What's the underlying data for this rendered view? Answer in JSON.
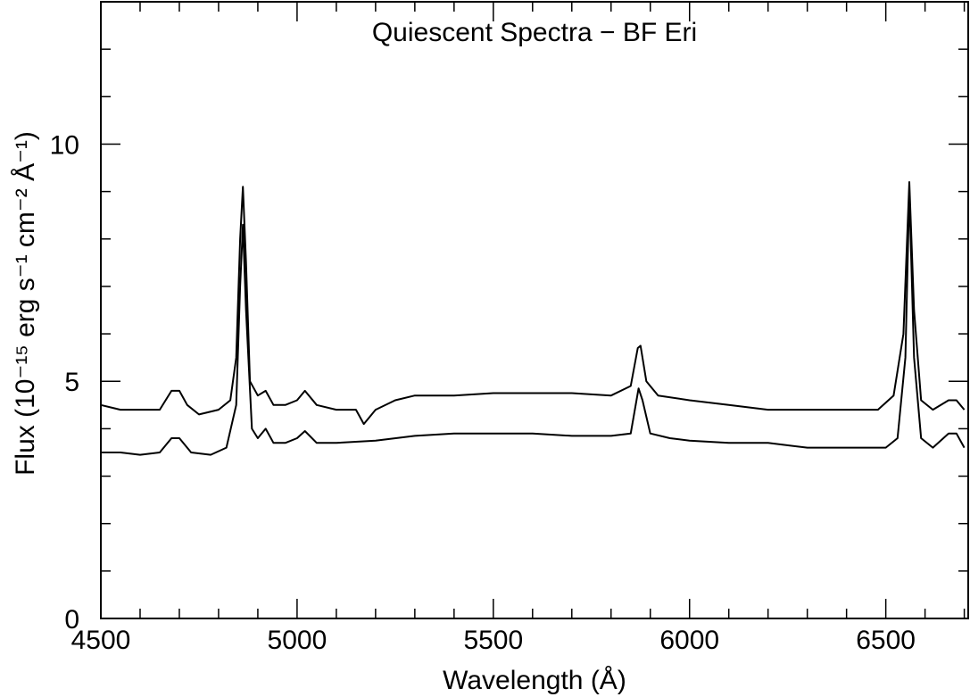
{
  "chart_data": {
    "type": "line",
    "title": "Quiescent Spectra − BF Eri",
    "x_label": "Wavelength (Å)",
    "y_label": "Flux (10⁻¹⁵ erg s⁻¹ cm⁻² Å⁻¹)",
    "xlim": [
      4500,
      6710
    ],
    "ylim": [
      0,
      13
    ],
    "xticks": [
      4500,
      5000,
      5500,
      6000,
      6500
    ],
    "yticks": [
      0,
      5,
      10
    ],
    "xminorticks": [
      4600,
      4700,
      4800,
      4900,
      5100,
      5200,
      5300,
      5400,
      5600,
      5700,
      5800,
      5900,
      6100,
      6200,
      6300,
      6400,
      6600,
      6700
    ],
    "yminorticks": [
      1,
      2,
      3,
      4,
      6,
      7,
      8,
      9,
      11,
      12
    ],
    "series": [
      {
        "color": "#000000",
        "x": [
          4500,
          4550,
          4600,
          4650,
          4680,
          4700,
          4720,
          4750,
          4800,
          4830,
          4845,
          4855,
          4862,
          4870,
          4880,
          4900,
          4920,
          4940,
          4970,
          5000,
          5020,
          5050,
          5100,
          5150,
          5170,
          5200,
          5250,
          5300,
          5400,
          5500,
          5600,
          5700,
          5800,
          5850,
          5868,
          5875,
          5890,
          5920,
          6000,
          6100,
          6200,
          6300,
          6400,
          6480,
          6520,
          6545,
          6560,
          6572,
          6590,
          6620,
          6660,
          6680,
          6700
        ],
        "values": [
          4.5,
          4.4,
          4.4,
          4.4,
          4.8,
          4.8,
          4.5,
          4.3,
          4.4,
          4.6,
          5.5,
          8.0,
          9.1,
          7.5,
          5.0,
          4.7,
          4.8,
          4.5,
          4.5,
          4.6,
          4.8,
          4.5,
          4.4,
          4.4,
          4.1,
          4.4,
          4.6,
          4.7,
          4.7,
          4.75,
          4.75,
          4.75,
          4.7,
          4.9,
          5.7,
          5.75,
          5.0,
          4.7,
          4.6,
          4.5,
          4.4,
          4.4,
          4.4,
          4.4,
          4.7,
          6.0,
          9.2,
          6.5,
          4.6,
          4.4,
          4.6,
          4.6,
          4.4
        ]
      },
      {
        "color": "#000000",
        "x": [
          4500,
          4550,
          4600,
          4650,
          4680,
          4700,
          4730,
          4780,
          4820,
          4845,
          4855,
          4862,
          4870,
          4885,
          4900,
          4920,
          4940,
          4970,
          5000,
          5020,
          5050,
          5100,
          5200,
          5300,
          5400,
          5500,
          5600,
          5700,
          5800,
          5850,
          5870,
          5880,
          5900,
          5950,
          6000,
          6100,
          6200,
          6300,
          6400,
          6500,
          6530,
          6550,
          6560,
          6572,
          6590,
          6620,
          6660,
          6680,
          6700
        ],
        "values": [
          3.5,
          3.5,
          3.45,
          3.5,
          3.8,
          3.8,
          3.5,
          3.45,
          3.6,
          4.5,
          7.0,
          8.3,
          6.5,
          4.0,
          3.8,
          4.0,
          3.7,
          3.7,
          3.8,
          3.95,
          3.7,
          3.7,
          3.75,
          3.85,
          3.9,
          3.9,
          3.9,
          3.85,
          3.85,
          3.9,
          4.85,
          4.6,
          3.9,
          3.8,
          3.75,
          3.7,
          3.7,
          3.6,
          3.6,
          3.6,
          3.8,
          5.5,
          9.0,
          5.5,
          3.8,
          3.6,
          3.9,
          3.9,
          3.6
        ]
      }
    ]
  }
}
